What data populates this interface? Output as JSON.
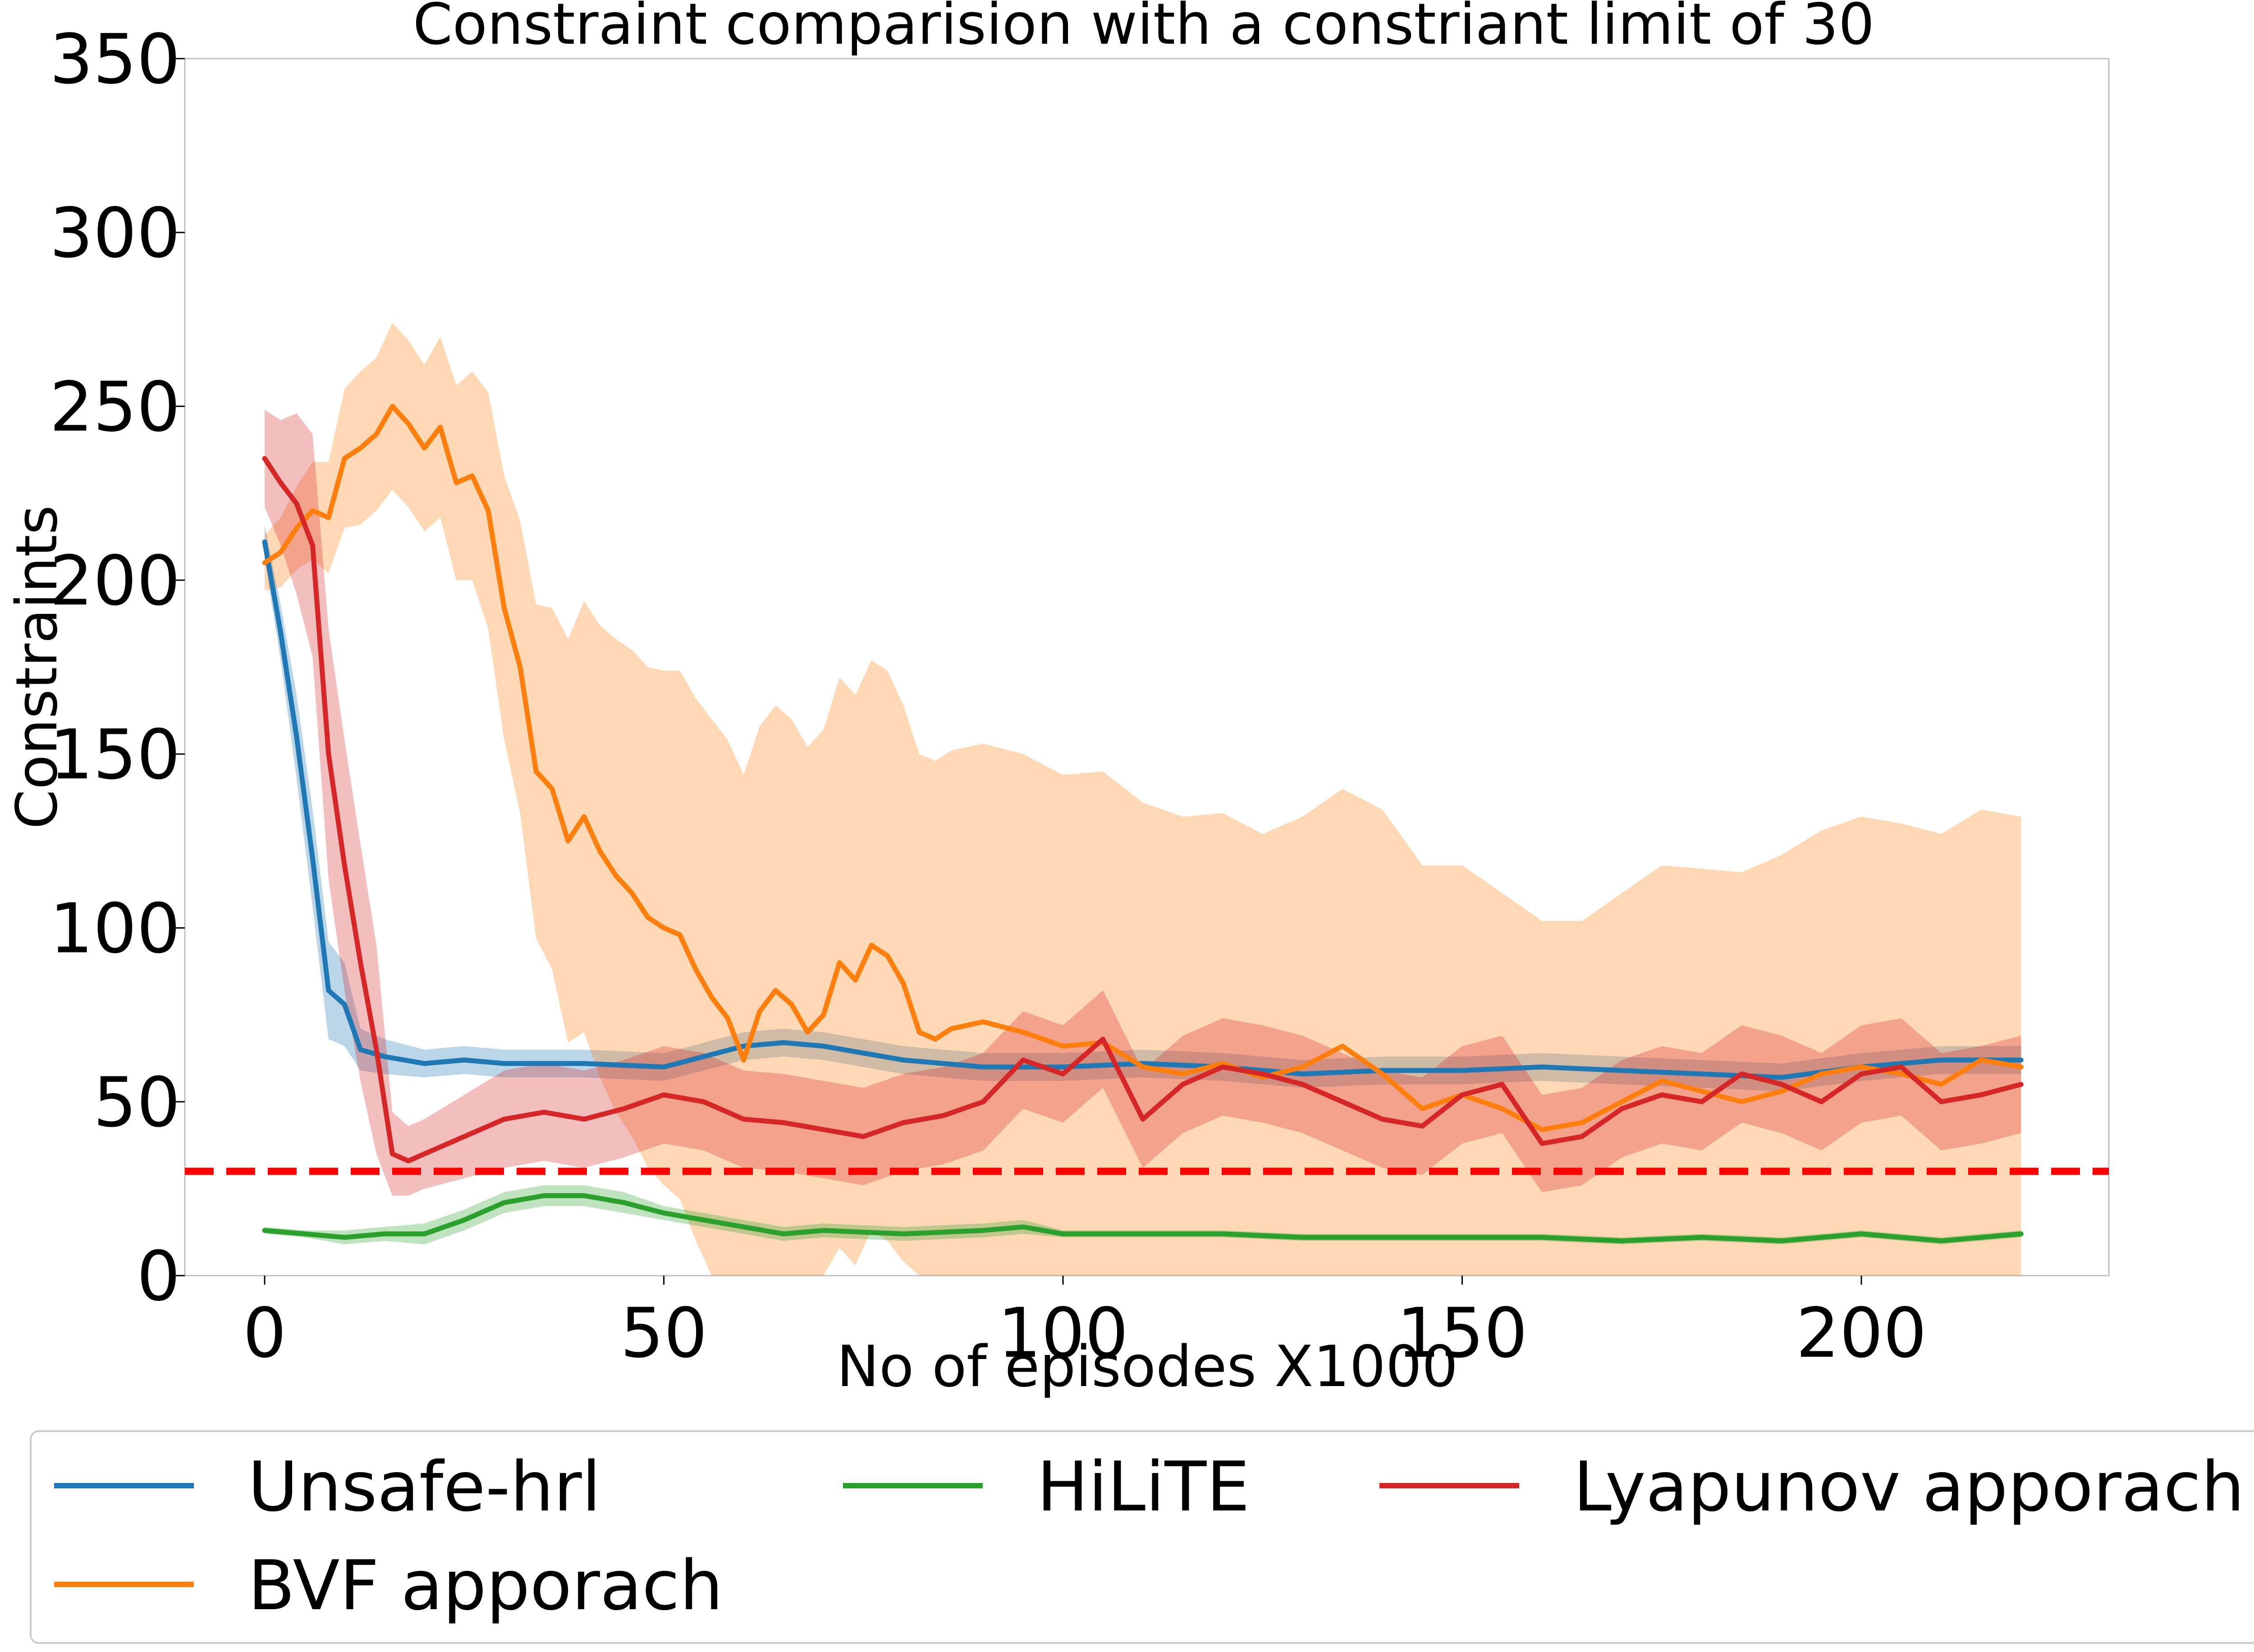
{
  "chart_data": {
    "type": "line",
    "title": "Constraint comparision with a constriant limit of 30",
    "xlabel": "No of episodes X1000",
    "ylabel": "Constraints",
    "xlim": [
      -10,
      231
    ],
    "ylim": [
      0,
      350
    ],
    "xticks": [
      0,
      50,
      100,
      150,
      200
    ],
    "yticks": [
      0,
      50,
      100,
      150,
      200,
      250,
      300,
      350
    ],
    "grid": false,
    "legend_position": "bottom",
    "reference_line": {
      "y": 30,
      "color": "#ff0000",
      "style": "dashed"
    },
    "series": [
      {
        "name": "Unsafe-hrl",
        "color": "#1f77b4",
        "x": [
          0,
          2,
          4,
          6,
          8,
          10,
          12,
          15,
          20,
          25,
          30,
          40,
          50,
          60,
          65,
          70,
          80,
          90,
          100,
          110,
          120,
          130,
          140,
          150,
          160,
          170,
          180,
          190,
          200,
          210,
          220
        ],
        "y": [
          211,
          185,
          155,
          120,
          82,
          78,
          65,
          63,
          61,
          62,
          61,
          61,
          60,
          66,
          67,
          66,
          62,
          60,
          60,
          61,
          60,
          58,
          59,
          59,
          60,
          59,
          58,
          57,
          60,
          62,
          62
        ],
        "band": [
          5,
          8,
          12,
          14,
          14,
          12,
          6,
          5,
          4,
          4,
          4,
          4,
          4,
          4,
          4,
          4,
          4,
          4,
          4,
          4,
          4,
          4,
          4,
          4,
          4,
          4,
          4,
          4,
          4,
          4,
          4
        ]
      },
      {
        "name": "BVF apporach",
        "color": "#ff7f0e",
        "x": [
          0,
          2,
          4,
          6,
          8,
          10,
          12,
          14,
          16,
          18,
          20,
          22,
          24,
          26,
          28,
          30,
          32,
          34,
          36,
          38,
          40,
          42,
          44,
          46,
          48,
          50,
          52,
          54,
          56,
          58,
          60,
          62,
          64,
          66,
          68,
          70,
          72,
          74,
          76,
          78,
          80,
          82,
          84,
          86,
          88,
          90,
          95,
          100,
          105,
          110,
          115,
          120,
          125,
          130,
          135,
          140,
          145,
          150,
          155,
          160,
          165,
          170,
          175,
          180,
          185,
          190,
          195,
          200,
          205,
          210,
          215,
          220
        ],
        "y": [
          205,
          208,
          215,
          220,
          218,
          235,
          238,
          242,
          250,
          245,
          238,
          244,
          228,
          230,
          220,
          192,
          175,
          145,
          140,
          125,
          132,
          122,
          115,
          110,
          103,
          100,
          98,
          88,
          80,
          74,
          62,
          76,
          82,
          78,
          70,
          75,
          90,
          85,
          95,
          92,
          84,
          70,
          68,
          71,
          72,
          73,
          70,
          66,
          67,
          60,
          58,
          61,
          57,
          60,
          66,
          58,
          48,
          52,
          48,
          42,
          44,
          50,
          56,
          53,
          50,
          53,
          58,
          60,
          58,
          55,
          62,
          60
        ],
        "band": [
          8,
          10,
          12,
          14,
          16,
          20,
          22,
          22,
          24,
          24,
          24,
          26,
          28,
          30,
          34,
          38,
          42,
          48,
          52,
          58,
          62,
          65,
          68,
          70,
          72,
          74,
          76,
          78,
          80,
          80,
          82,
          82,
          82,
          82,
          82,
          82,
          82,
          82,
          82,
          82,
          80,
          80,
          80,
          80,
          80,
          80,
          80,
          78,
          78,
          76,
          74,
          72,
          70,
          72,
          74,
          76,
          70,
          66,
          62,
          60,
          58,
          60,
          62,
          64,
          66,
          68,
          70,
          72,
          72,
          72,
          72,
          72
        ]
      },
      {
        "name": "HiLiTE",
        "color": "#2ca02c",
        "x": [
          0,
          5,
          10,
          15,
          20,
          25,
          30,
          35,
          40,
          45,
          50,
          55,
          60,
          65,
          70,
          80,
          90,
          95,
          100,
          110,
          120,
          130,
          140,
          150,
          160,
          170,
          180,
          190,
          200,
          210,
          220
        ],
        "y": [
          13,
          12,
          11,
          12,
          12,
          16,
          21,
          23,
          23,
          21,
          18,
          16,
          14,
          12,
          13,
          12,
          13,
          14,
          12,
          12,
          12,
          11,
          11,
          11,
          11,
          10,
          11,
          10,
          12,
          10,
          12
        ],
        "band": [
          1,
          1,
          2,
          2,
          3,
          3,
          3,
          3,
          3,
          3,
          2,
          2,
          2,
          2,
          2,
          2,
          2,
          2,
          1,
          1,
          1,
          1,
          1,
          1,
          1,
          1,
          1,
          1,
          1,
          1,
          1
        ]
      },
      {
        "name": "Lyapunov apporach",
        "color": "#d62728",
        "x": [
          0,
          2,
          4,
          6,
          8,
          10,
          12,
          14,
          16,
          18,
          20,
          25,
          30,
          35,
          40,
          45,
          50,
          55,
          60,
          65,
          70,
          75,
          80,
          85,
          90,
          95,
          100,
          105,
          110,
          115,
          120,
          125,
          130,
          135,
          140,
          145,
          150,
          155,
          160,
          165,
          170,
          175,
          180,
          185,
          190,
          195,
          200,
          205,
          210,
          215,
          220
        ],
        "y": [
          235,
          228,
          222,
          210,
          150,
          118,
          90,
          65,
          35,
          33,
          35,
          40,
          45,
          47,
          45,
          48,
          52,
          50,
          45,
          44,
          42,
          40,
          44,
          46,
          50,
          62,
          58,
          68,
          45,
          55,
          60,
          58,
          55,
          50,
          45,
          43,
          52,
          55,
          38,
          40,
          48,
          52,
          50,
          58,
          55,
          50,
          58,
          60,
          50,
          52,
          55
        ],
        "band": [
          14,
          18,
          26,
          32,
          36,
          36,
          34,
          30,
          12,
          10,
          10,
          12,
          14,
          14,
          14,
          14,
          14,
          14,
          14,
          14,
          14,
          14,
          14,
          14,
          14,
          14,
          14,
          14,
          14,
          14,
          14,
          14,
          14,
          14,
          14,
          14,
          14,
          14,
          14,
          14,
          14,
          14,
          14,
          14,
          14,
          14,
          14,
          14,
          14,
          14,
          14
        ]
      }
    ]
  }
}
